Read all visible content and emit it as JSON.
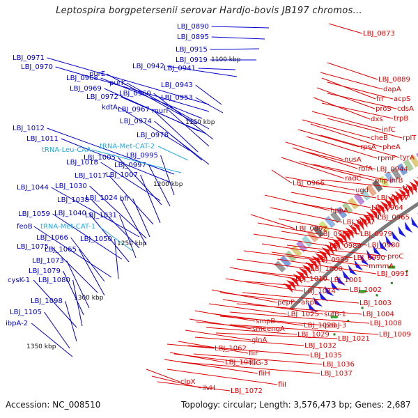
{
  "title": "Leptospira borgpetersenii serovar Hardjo-bovis JB197 chromos...",
  "accession": "Accession: NC_008510",
  "footer": "Topology: circular; Length: 3,576,473 bp; Genes: 2,687",
  "colors": {
    "left_label": "#0000cc",
    "right_label": "#dd0000",
    "rna_label": "#22aadd",
    "minus_strand": "#1a1aee",
    "plus_strand": "#ee1111",
    "backbone": "#7a7a7a",
    "tick_dot": "#228822",
    "gc_marker": "#33aa33"
  },
  "kbp_ticks": [
    "1100 kbp",
    "1150 kbp",
    "1200 kbp",
    "1250 kbp",
    "1300 kbp",
    "1350 kbp"
  ],
  "left_labels": [
    "LBJ_0890",
    "LBJ_0895",
    "LBJ_0915",
    "LBJ_0919",
    "LBJ_0942",
    "LBJ_0941",
    "LBJ_0971",
    "LBJ_0970",
    "LBJ_0968",
    "purE",
    "purK",
    "LBJ_0969",
    "LBJ_0972",
    "LBJ_0960",
    "LBJ_0943",
    "LBJ_0953",
    "kdtA",
    "LBJ_0967",
    "murF",
    "LBJ_0974",
    "LBJ_1012",
    "LBJ_1011",
    "LBJ_0978",
    "LBJ_1018",
    "LBJ_1005",
    "LBJ_0995",
    "LBJ_0997",
    "LBJ_1017",
    "LBJ_1007",
    "LBJ_1044",
    "LBJ_1030",
    "LBJ_1038",
    "LBJ_1024",
    "bfr",
    "LBJ_1059",
    "LBJ_1040",
    "LBJ_1031",
    "feoB",
    "LBJ_1066",
    "LBJ_1050",
    "LBJ_1075",
    "LBJ_1065",
    "LBJ_1073",
    "LBJ_1079",
    "cysK-1",
    "LBJ_1080",
    "LBJ_1098",
    "LBJ_1105",
    "ibpA-2"
  ],
  "rna_labels": [
    "tRNA-Leu-CAA",
    "tRNA-Met-CAT-2",
    "tRNA-Met-CAT-1"
  ],
  "right_labels": [
    "LBJ_0873",
    "LBJ_0889",
    "dapA",
    "frr",
    "acpS",
    "proS",
    "cdsA",
    "dxs",
    "trpB",
    "infC",
    "rplT",
    "cheB",
    "pheA",
    "rpsA",
    "tyrA",
    "rpmF",
    "nusA",
    "rbfA",
    "LBJ_0944",
    "radC",
    "pnp",
    "infB",
    "LBJ_0966",
    "ugd",
    "truB",
    "LBJ_0957",
    "LBJ_0964",
    "hppA",
    "LBJ_0965",
    "LBJ_0977",
    "LBJ_0992",
    "LBJ_0979",
    "LBJ_0988",
    "LBJ_0980",
    "LBJ_0989",
    "LBJ_0990",
    "proC",
    "mmmA",
    "LBJ_0991",
    "LBJ_0999",
    "LBJ_1000",
    "LBJ_1010",
    "LBJ_1001",
    "LBJ_1014",
    "LBJ_1002",
    "LBJ_1003",
    "pepP",
    "ahpC",
    "sufB-1",
    "LBJ_1004",
    "LBJ_1025",
    "LBJ_1008",
    "smpB",
    "LBJ_1028",
    "paaJ-3",
    "LBJ_1009",
    "smc",
    "engA",
    "LBJ_1029",
    "LBJ_1021",
    "glnA",
    "LBJ_1032",
    "fliF",
    "LBJ_1035",
    "LBJ_1036",
    "LBJ_1062",
    "LBJ_1061",
    "fliG-3",
    "LBJ_1037",
    "fliH",
    "fliI",
    "clpX",
    "ilvH",
    "LBJ_1072"
  ]
}
